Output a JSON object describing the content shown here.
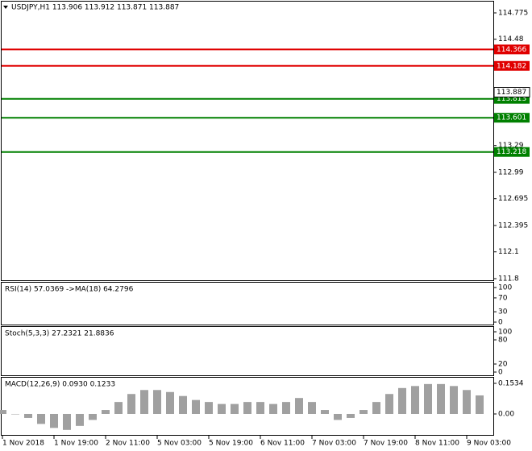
{
  "chart_data": [
    {
      "type": "line",
      "title": "USDJPY,H1  113.906 113.912 113.871 113.887",
      "categories": [
        "1 Nov 2018",
        null,
        null,
        null,
        "1 Nov 19:00",
        null,
        null,
        null,
        "2 Nov 11:00",
        null,
        null,
        null,
        "5 Nov 03:00",
        null,
        null,
        null,
        "5 Nov 19:00",
        null,
        null,
        null,
        "6 Nov 11:00",
        null,
        null,
        null,
        "7 Nov 03:00",
        null,
        null,
        null,
        "7 Nov 19:00",
        null,
        null,
        null,
        "8 Nov 11:00",
        null,
        null,
        null,
        "9 Nov 03:00",
        null
      ],
      "ylim": [
        111.8,
        114.775
      ],
      "yticks": [
        111.8,
        112.1,
        112.395,
        112.695,
        112.99,
        113.29,
        114.48,
        114.775
      ],
      "grid": false,
      "series": [
        {
          "color": "#000000",
          "width": 1,
          "values": [
            112.85,
            112.9,
            112.95,
            112.8,
            112.7,
            112.68,
            112.75,
            112.85,
            112.98,
            113.1,
            113.3,
            113.25,
            113.22,
            113.3,
            113.28,
            113.22,
            113.22,
            113.25,
            113.33,
            113.38,
            113.3,
            113.3,
            113.45,
            113.5,
            113.38,
            113.2,
            113.15,
            113.3,
            113.4,
            113.52,
            113.6,
            113.65,
            113.68,
            113.7,
            113.88,
            114.02,
            113.92,
            113.887
          ]
        },
        {
          "color": "#008000",
          "width": 2,
          "values": [
            113.07,
            113.0,
            112.94,
            112.88,
            112.83,
            112.81,
            112.8,
            112.84,
            112.94,
            113.15,
            113.43,
            113.55,
            113.57,
            113.5,
            113.34,
            113.36,
            113.39,
            113.45,
            113.48,
            113.5,
            113.5,
            113.58,
            113.66,
            113.8,
            113.88,
            113.7,
            113.52,
            113.5,
            113.52,
            113.7,
            114.02,
            114.05,
            114.02,
            113.98,
            114.06,
            114.24,
            114.25,
            114.24
          ]
        },
        {
          "color": "#008000",
          "width": 2,
          "values": [
            112.66,
            112.62,
            112.56,
            112.58,
            112.62,
            112.66,
            112.68,
            112.55,
            112.44,
            112.47,
            112.5,
            112.54,
            112.57,
            112.8,
            112.95,
            113.07,
            113.1,
            113.12,
            113.1,
            113.07,
            113.05,
            113.03,
            113.0,
            112.98,
            112.93,
            112.88,
            112.83,
            112.8,
            112.8,
            112.85,
            112.95,
            113.12,
            113.48,
            113.61,
            113.43,
            113.37,
            113.4,
            113.46
          ]
        },
        {
          "color": "#e00000",
          "width": 2,
          "values": [
            112.53,
            112.54,
            112.56,
            112.57,
            112.59,
            112.6,
            112.61,
            112.63,
            112.64,
            112.66,
            112.67,
            112.69,
            112.7,
            112.71,
            112.73,
            112.74,
            112.76,
            112.77,
            112.78,
            112.8,
            112.81,
            112.83,
            112.84,
            112.85,
            112.87,
            112.88,
            112.9,
            112.91,
            112.92,
            112.94,
            112.95,
            112.97,
            112.98,
            112.99,
            113.01,
            113.02,
            113.04,
            113.05
          ]
        },
        {
          "color": "#008000",
          "width": 2,
          "values": [
            112.58,
            112.6,
            112.62,
            112.64,
            112.66,
            112.68,
            112.7,
            112.72,
            112.74,
            112.76,
            112.78,
            112.79,
            112.8,
            112.81,
            112.82,
            112.83,
            112.84,
            112.85,
            112.86,
            112.87,
            112.88,
            112.89,
            112.9,
            112.91,
            112.92,
            112.93,
            112.94,
            112.96,
            112.98,
            113.0,
            113.02,
            113.05,
            113.08,
            113.11,
            113.13,
            113.15,
            113.17,
            113.19
          ]
        }
      ],
      "levels": [
        {
          "value": 114.366,
          "color": "#e00000"
        },
        {
          "value": 114.182,
          "color": "#e00000"
        },
        {
          "value": 113.813,
          "color": "#008000"
        },
        {
          "value": 113.601,
          "color": "#008000"
        },
        {
          "value": 113.218,
          "color": "#008000"
        }
      ],
      "last_price": 113.887
    },
    {
      "type": "line",
      "title": "RSI(14) 57.0369  ->MA(18) 64.2796",
      "ylim": [
        0,
        100
      ],
      "yticks": [
        0,
        30,
        70,
        100
      ],
      "series": [
        {
          "color": "#e00000",
          "width": 1,
          "values": [
            48,
            52,
            55,
            45,
            42,
            40,
            48,
            55,
            60,
            62,
            65,
            58,
            55,
            58,
            55,
            50,
            52,
            55,
            58,
            60,
            52,
            50,
            62,
            64,
            50,
            42,
            40,
            52,
            58,
            62,
            64,
            63,
            62,
            62,
            67,
            70,
            60,
            57
          ]
        },
        {
          "color": "#000080",
          "width": 1,
          "values": [
            50,
            50,
            50,
            50,
            49,
            49,
            49,
            50,
            51,
            52,
            53,
            54,
            55,
            55,
            55,
            55,
            55,
            55,
            55,
            55,
            55,
            55,
            55,
            55,
            54,
            53,
            53,
            53,
            54,
            55,
            56,
            57,
            58,
            59,
            60,
            62,
            63,
            64
          ]
        }
      ]
    },
    {
      "type": "line",
      "title": "Stoch(5,3,3) 27.2321 21.8836",
      "ylim": [
        0,
        100
      ],
      "yticks": [
        0,
        20,
        80,
        100
      ],
      "series": [
        {
          "color": "#20b2aa",
          "width": 1,
          "values": [
            80,
            90,
            70,
            20,
            10,
            30,
            80,
            90,
            40,
            10,
            60,
            90,
            30,
            20,
            80,
            90,
            40,
            10,
            80,
            90,
            20,
            15,
            90,
            95,
            20,
            10,
            15,
            60,
            95,
            95,
            95,
            90,
            40,
            20,
            90,
            95,
            30,
            27
          ]
        },
        {
          "color": "#e00000",
          "width": 1,
          "dash": true,
          "values": [
            70,
            85,
            80,
            40,
            15,
            20,
            60,
            85,
            60,
            25,
            40,
            80,
            60,
            25,
            60,
            85,
            60,
            20,
            50,
            85,
            45,
            15,
            60,
            90,
            50,
            15,
            12,
            40,
            85,
            95,
            95,
            92,
            60,
            30,
            65,
            90,
            55,
            22
          ]
        }
      ]
    },
    {
      "type": "bar",
      "title": "MACD(12,26,9) 0.0930 0.1233",
      "ylim": [
        -0.105,
        0.178
      ],
      "yticks": [
        {
          "value": 0,
          "label": "0.00"
        },
        0.1534
      ],
      "color": "#a0a0a0",
      "values": [
        0.02,
        0.0,
        -0.02,
        -0.05,
        -0.07,
        -0.08,
        -0.06,
        -0.03,
        0.02,
        0.06,
        0.1,
        0.12,
        0.12,
        0.11,
        0.09,
        0.07,
        0.06,
        0.05,
        0.05,
        0.06,
        0.06,
        0.05,
        0.06,
        0.08,
        0.06,
        0.02,
        -0.03,
        -0.02,
        0.02,
        0.06,
        0.1,
        0.13,
        0.14,
        0.15,
        0.15,
        0.14,
        0.12,
        0.093
      ],
      "series": [
        {
          "color": "#e00000",
          "width": 1,
          "values": [
            0.03,
            0.02,
            0.01,
            -0.01,
            -0.03,
            -0.05,
            -0.06,
            -0.05,
            -0.03,
            0.0,
            0.03,
            0.06,
            0.08,
            0.09,
            0.09,
            0.09,
            0.08,
            0.07,
            0.07,
            0.06,
            0.06,
            0.06,
            0.06,
            0.06,
            0.06,
            0.05,
            0.03,
            0.01,
            0.0,
            0.02,
            0.04,
            0.07,
            0.09,
            0.11,
            0.12,
            0.13,
            0.13,
            0.1233
          ]
        }
      ]
    }
  ]
}
